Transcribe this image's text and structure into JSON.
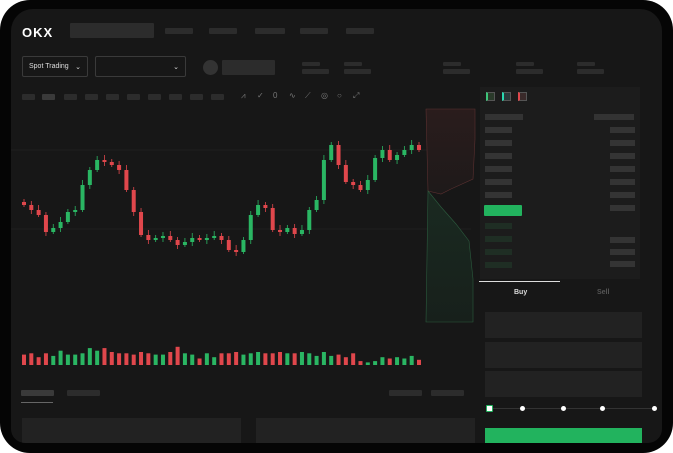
{
  "header": {
    "logo": "OKX"
  },
  "market": {
    "mode_label": "Spot Trading",
    "pair_select": ""
  },
  "trade": {
    "buy_label": "Buy",
    "sell_label": "Sell",
    "active_tab": "Buy",
    "slider_percent": 0
  },
  "colors": {
    "up": "#2ab663",
    "down": "#e0474c",
    "accent": "#22b35e",
    "background": "#171717"
  },
  "chart_data": {
    "type": "candlestick",
    "close": [
      95,
      90,
      85,
      68,
      72,
      78,
      88,
      90,
      115,
      130,
      140,
      138,
      135,
      130,
      110,
      88,
      65,
      60,
      62,
      64,
      60,
      55,
      58,
      62,
      60,
      62,
      64,
      60,
      50,
      48,
      60,
      85,
      95,
      92,
      70,
      68,
      72,
      66,
      70,
      90,
      100,
      140,
      155,
      135,
      118,
      115,
      110,
      120,
      142,
      150,
      140,
      145,
      150,
      155,
      150
    ],
    "open0": 98,
    "volume": [
      8,
      9,
      6,
      9,
      7,
      11,
      8,
      8,
      9,
      13,
      11,
      13,
      10,
      9,
      9,
      8,
      10,
      9,
      8,
      8,
      10,
      14,
      9,
      8,
      5,
      9,
      6,
      9,
      9,
      10,
      8,
      9,
      10,
      9,
      9,
      10,
      9,
      9,
      10,
      9,
      7,
      10,
      7,
      8,
      6,
      9,
      3,
      2,
      3,
      6,
      5,
      6,
      5,
      7,
      4
    ]
  }
}
